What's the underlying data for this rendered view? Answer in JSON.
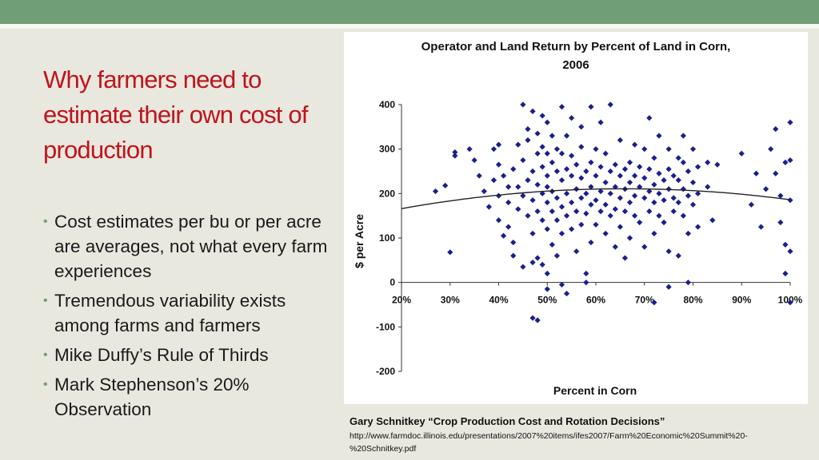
{
  "slide": {
    "title": "Why farmers need to estimate their own cost of production",
    "bullets": [
      "Cost estimates per bu or per acre are averages, not what every farm experiences",
      "Tremendous variability exists among farms and farmers",
      "Mike Duffy’s Rule of Thirds",
      "Mark Stephenson’s 20% Observation"
    ],
    "citation": "Gary Schnitkey “Crop Production Cost and Rotation Decisions”",
    "url": "http://www.farmdoc.illinois.edu/presentations/2007%20items/ifes2007/Farm%20Economic%20Summit%20-%20Schnitkey.pdf"
  },
  "colors": {
    "accent_bar": "#6f9e77",
    "title": "#c0141c",
    "points": "#1a1f8c",
    "trend": "#222222"
  },
  "chart_data": {
    "type": "scatter",
    "title": "Operator and Land Return by Percent of Land in Corn, 2006",
    "xlabel": "Percent in Corn",
    "ylabel": "$ per Acre",
    "xlim": [
      20,
      100
    ],
    "ylim": [
      -200,
      400
    ],
    "x_ticks": [
      "20%",
      "30%",
      "40%",
      "50%",
      "60%",
      "70%",
      "80%",
      "90%",
      "100%"
    ],
    "y_ticks": [
      "400",
      "300",
      "200",
      "100",
      "0",
      "-100",
      "-200"
    ],
    "grid": false,
    "legend": "none",
    "marker": "diamond",
    "trend_line": {
      "type": "quadratic",
      "x": [
        20,
        40,
        60,
        80,
        100
      ],
      "y": [
        166,
        195,
        210,
        205,
        186
      ]
    },
    "series": [
      {
        "points": [
          [
            27,
            205
          ],
          [
            29,
            218
          ],
          [
            31,
            293
          ],
          [
            31,
            285
          ],
          [
            30,
            68
          ],
          [
            34,
            300
          ],
          [
            35,
            275
          ],
          [
            36,
            240
          ],
          [
            37,
            205
          ],
          [
            38,
            170
          ],
          [
            39,
            300
          ],
          [
            39,
            230
          ],
          [
            40,
            310
          ],
          [
            40,
            265
          ],
          [
            40,
            195
          ],
          [
            40,
            140
          ],
          [
            41,
            240
          ],
          [
            41,
            105
          ],
          [
            42,
            215
          ],
          [
            42,
            180
          ],
          [
            42,
            125
          ],
          [
            43,
            90
          ],
          [
            43,
            255
          ],
          [
            43,
            60
          ],
          [
            44,
            165
          ],
          [
            44,
            310
          ],
          [
            44,
            215
          ],
          [
            45,
            400
          ],
          [
            45,
            275
          ],
          [
            45,
            195
          ],
          [
            45,
            35
          ],
          [
            46,
            345
          ],
          [
            46,
            230
          ],
          [
            46,
            150
          ],
          [
            46,
            320
          ],
          [
            47,
            250
          ],
          [
            47,
            185
          ],
          [
            47,
            110
          ],
          [
            47,
            385
          ],
          [
            47,
            45
          ],
          [
            48,
            290
          ],
          [
            48,
            220
          ],
          [
            48,
            160
          ],
          [
            48,
            335
          ],
          [
            48,
            55
          ],
          [
            49,
            260
          ],
          [
            49,
            200
          ],
          [
            49,
            140
          ],
          [
            49,
            375
          ],
          [
            49,
            305
          ],
          [
            49,
            40
          ],
          [
            50,
            240
          ],
          [
            50,
            180
          ],
          [
            50,
            120
          ],
          [
            50,
            360
          ],
          [
            50,
            290
          ],
          [
            50,
            215
          ],
          [
            50,
            20
          ],
          [
            51,
            270
          ],
          [
            51,
            205
          ],
          [
            51,
            160
          ],
          [
            51,
            85
          ],
          [
            51,
            330
          ],
          [
            52,
            250
          ],
          [
            52,
            190
          ],
          [
            52,
            140
          ],
          [
            52,
            300
          ],
          [
            52,
            60
          ],
          [
            53,
            230
          ],
          [
            53,
            170
          ],
          [
            53,
            290
          ],
          [
            53,
            110
          ],
          [
            53,
            395
          ],
          [
            54,
            255
          ],
          [
            54,
            200
          ],
          [
            54,
            150
          ],
          [
            54,
            330
          ],
          [
            55,
            240
          ],
          [
            55,
            180
          ],
          [
            55,
            285
          ],
          [
            55,
            120
          ],
          [
            55,
            370
          ],
          [
            56,
            265
          ],
          [
            56,
            210
          ],
          [
            56,
            160
          ],
          [
            56,
            70
          ],
          [
            57,
            235
          ],
          [
            57,
            190
          ],
          [
            57,
            305
          ],
          [
            57,
            130
          ],
          [
            57,
            350
          ],
          [
            58,
            250
          ],
          [
            58,
            200
          ],
          [
            58,
            155
          ],
          [
            58,
            20
          ],
          [
            59,
            270
          ],
          [
            59,
            215
          ],
          [
            59,
            175
          ],
          [
            59,
            90
          ],
          [
            59,
            395
          ],
          [
            60,
            240
          ],
          [
            60,
            185
          ],
          [
            60,
            300
          ],
          [
            60,
            130
          ],
          [
            61,
            260
          ],
          [
            61,
            205
          ],
          [
            61,
            160
          ],
          [
            61,
            360
          ],
          [
            62,
            225
          ],
          [
            62,
            175
          ],
          [
            62,
            290
          ],
          [
            62,
            110
          ],
          [
            63,
            250
          ],
          [
            63,
            200
          ],
          [
            63,
            150
          ],
          [
            63,
            400
          ],
          [
            64,
            265
          ],
          [
            64,
            215
          ],
          [
            64,
            165
          ],
          [
            64,
            80
          ],
          [
            65,
            240
          ],
          [
            65,
            190
          ],
          [
            65,
            320
          ],
          [
            65,
            125
          ],
          [
            66,
            255
          ],
          [
            66,
            210
          ],
          [
            66,
            160
          ],
          [
            66,
            55
          ],
          [
            67,
            270
          ],
          [
            67,
            225
          ],
          [
            67,
            180
          ],
          [
            67,
            100
          ],
          [
            68,
            240
          ],
          [
            68,
            195
          ],
          [
            68,
            310
          ],
          [
            68,
            150
          ],
          [
            69,
            260
          ],
          [
            69,
            215
          ],
          [
            69,
            135
          ],
          [
            70,
            235
          ],
          [
            70,
            190
          ],
          [
            70,
            300
          ],
          [
            70,
            80
          ],
          [
            71,
            255
          ],
          [
            71,
            205
          ],
          [
            71,
            160
          ],
          [
            71,
            370
          ],
          [
            72,
            220
          ],
          [
            72,
            180
          ],
          [
            72,
            280
          ],
          [
            72,
            110
          ],
          [
            73,
            245
          ],
          [
            73,
            200
          ],
          [
            73,
            150
          ],
          [
            73,
            330
          ],
          [
            74,
            230
          ],
          [
            74,
            185
          ],
          [
            74,
            135
          ],
          [
            75,
            255
          ],
          [
            75,
            210
          ],
          [
            75,
            300
          ],
          [
            75,
            70
          ],
          [
            76,
            240
          ],
          [
            76,
            190
          ],
          [
            76,
            160
          ],
          [
            77,
            280
          ],
          [
            77,
            230
          ],
          [
            77,
            180
          ],
          [
            77,
            60
          ],
          [
            78,
            270
          ],
          [
            78,
            210
          ],
          [
            78,
            150
          ],
          [
            78,
            330
          ],
          [
            79,
            250
          ],
          [
            79,
            195
          ],
          [
            79,
            110
          ],
          [
            80,
            300
          ],
          [
            80,
            225
          ],
          [
            80,
            175
          ],
          [
            81,
            260
          ],
          [
            81,
            200
          ],
          [
            81,
            125
          ],
          [
            83,
            270
          ],
          [
            83,
            215
          ],
          [
            84,
            140
          ],
          [
            85,
            265
          ],
          [
            90,
            290
          ],
          [
            92,
            175
          ],
          [
            93,
            245
          ],
          [
            94,
            125
          ],
          [
            95,
            210
          ],
          [
            96,
            300
          ],
          [
            97,
            345
          ],
          [
            97,
            245
          ],
          [
            98,
            135
          ],
          [
            98,
            195
          ],
          [
            99,
            270
          ],
          [
            99,
            85
          ],
          [
            99,
            20
          ],
          [
            100,
            360
          ],
          [
            100,
            275
          ],
          [
            100,
            185
          ],
          [
            100,
            70
          ],
          [
            100,
            -45
          ],
          [
            53,
            -5
          ],
          [
            50,
            -15
          ],
          [
            47,
            -80
          ],
          [
            48,
            -85
          ],
          [
            54,
            -25
          ],
          [
            58,
            0
          ],
          [
            72,
            -45
          ],
          [
            75,
            -10
          ],
          [
            79,
            0
          ]
        ]
      }
    ]
  }
}
